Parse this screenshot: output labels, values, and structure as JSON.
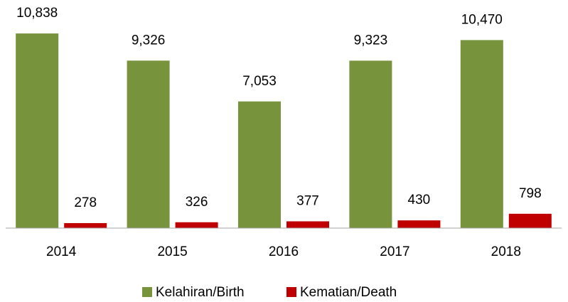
{
  "chart_data": {
    "type": "bar",
    "categories": [
      "2014",
      "2015",
      "2016",
      "2017",
      "2018"
    ],
    "series": [
      {
        "name": "Kelahiran/Birth",
        "color": "#77933c",
        "values": [
          10838,
          9326,
          7053,
          9323,
          10470
        ],
        "value_labels": [
          "10,838",
          "9,326",
          "7,053",
          "9,323",
          "10,470"
        ]
      },
      {
        "name": "Kematian/Death",
        "color": "#c00000",
        "values": [
          278,
          326,
          377,
          430,
          798
        ]
      }
    ],
    "ylim": [
      0,
      11000
    ]
  }
}
